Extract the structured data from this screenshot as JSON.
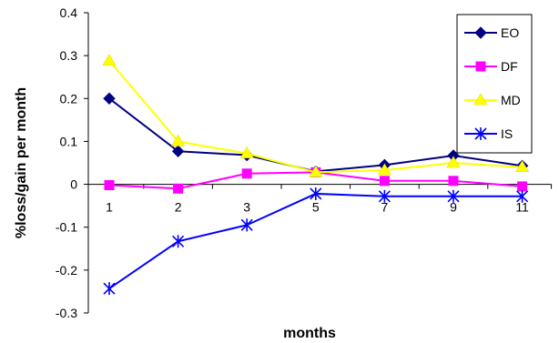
{
  "chart_data": {
    "type": "line",
    "title": "",
    "xlabel": "months",
    "ylabel": "%loss/gain per month",
    "categories": [
      "1",
      "2",
      "3",
      "5",
      "7",
      "9",
      "11"
    ],
    "ylim": [
      -0.3,
      0.4
    ],
    "yticks": [
      "0.4",
      "0.3",
      "0.2",
      "0.1",
      "0",
      "-0.1",
      "-0.2",
      "-0.3"
    ],
    "ytick_values": [
      0.4,
      0.3,
      0.2,
      0.1,
      0,
      -0.1,
      -0.2,
      -0.3
    ],
    "grid": false,
    "legend_position": "top-right",
    "series": [
      {
        "name": "EO",
        "color": "#000080",
        "marker": "diamond",
        "values": [
          0.2,
          0.077,
          0.068,
          0.03,
          0.045,
          0.067,
          0.043
        ]
      },
      {
        "name": "DF",
        "color": "#FF00FF",
        "marker": "square",
        "values": [
          -0.002,
          -0.01,
          0.025,
          0.028,
          0.008,
          0.008,
          -0.005
        ]
      },
      {
        "name": "MD",
        "color": "#FFFF00",
        "marker": "triangle",
        "values": [
          0.288,
          0.1,
          0.072,
          0.028,
          0.033,
          0.05,
          0.04
        ]
      },
      {
        "name": "IS",
        "color": "#0000FF",
        "marker": "star",
        "values": [
          -0.243,
          -0.133,
          -0.095,
          -0.022,
          -0.028,
          -0.028,
          -0.028
        ]
      }
    ]
  }
}
